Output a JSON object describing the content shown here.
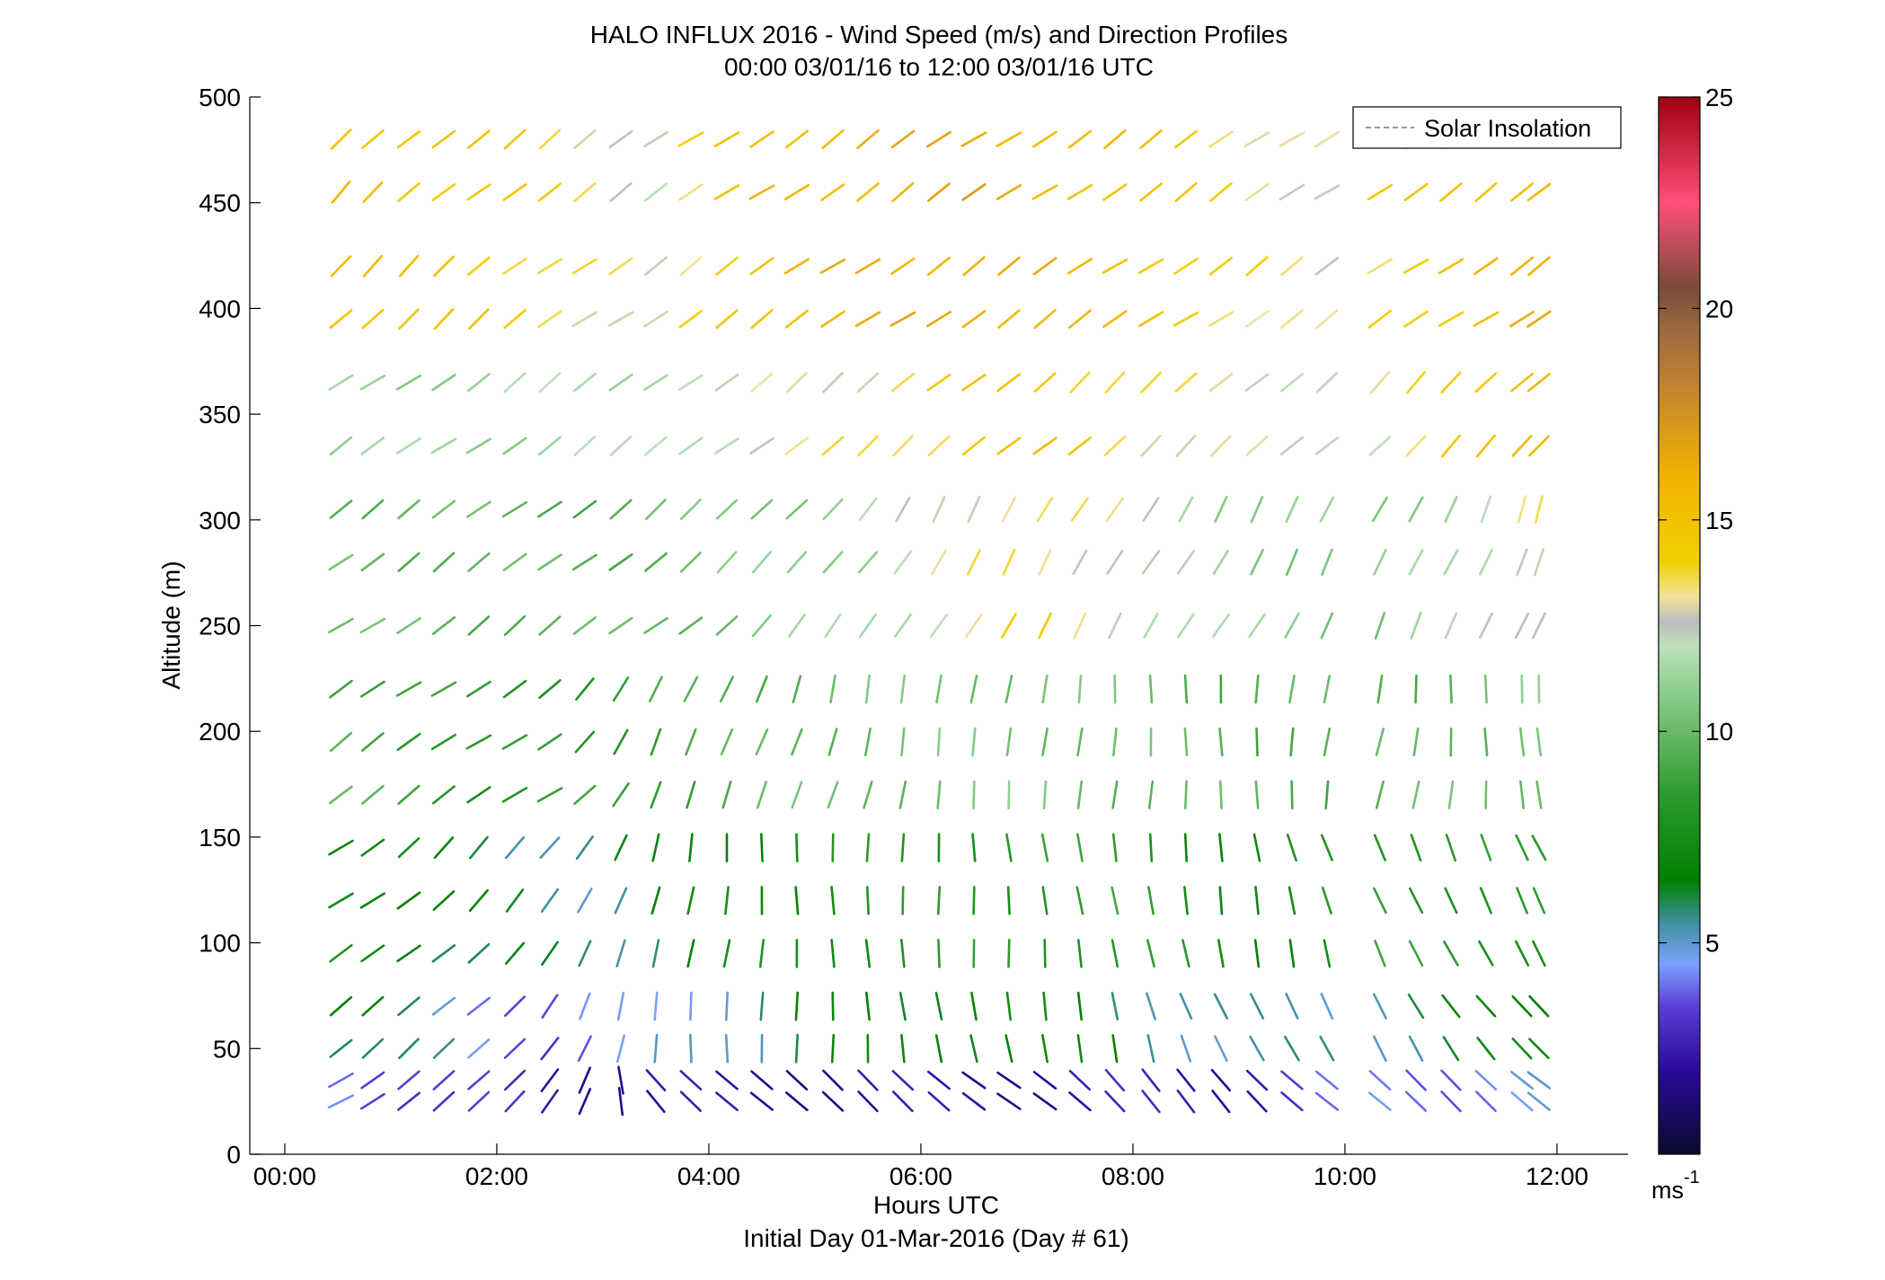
{
  "chart_data": {
    "type": "wind_barb_profile",
    "title": "HALO INFLUX 2016 - Wind Speed (m/s) and Direction Profiles",
    "subtitle": "00:00 03/01/16 to 12:00 03/01/16  UTC",
    "xlabel": "Hours UTC",
    "xlabel2": "Initial Day 01-Mar-2016 (Day # 61)",
    "ylabel": "Altitude (m)",
    "xlim": [
      -0.33,
      12.67
    ],
    "ylim": [
      0,
      500
    ],
    "x_ticks": [
      0,
      2,
      4,
      6,
      8,
      10,
      12
    ],
    "x_tick_labels": [
      "00:00",
      "02:00",
      "04:00",
      "06:00",
      "08:00",
      "10:00",
      "12:00"
    ],
    "y_ticks": [
      0,
      50,
      100,
      150,
      200,
      250,
      300,
      350,
      400,
      450,
      500
    ],
    "y_tick_labels": [
      "0",
      "50",
      "100",
      "150",
      "200",
      "250",
      "300",
      "350",
      "400",
      "450",
      "500"
    ],
    "grid": false,
    "legend": {
      "location": "top-right",
      "entries": [
        {
          "label": "Solar Insolation",
          "color": "#999999",
          "style": "dashed"
        }
      ]
    },
    "colorbar": {
      "range": [
        0,
        25
      ],
      "ticks": [
        5,
        10,
        15,
        20,
        25
      ],
      "tick_labels": [
        "5",
        "10",
        "15",
        "20",
        "25"
      ],
      "unit_label": "ms",
      "unit_exponent": "-1",
      "colormap_stops": [
        {
          "v": 0,
          "color": "#0a0a2e"
        },
        {
          "v": 2,
          "color": "#2a0a9a"
        },
        {
          "v": 3.5,
          "color": "#5a3fd6"
        },
        {
          "v": 4.5,
          "color": "#7aa2ff"
        },
        {
          "v": 5.5,
          "color": "#3e8f9a"
        },
        {
          "v": 6.5,
          "color": "#008000"
        },
        {
          "v": 8.5,
          "color": "#2e9a2e"
        },
        {
          "v": 11,
          "color": "#8fcf8f"
        },
        {
          "v": 12,
          "color": "#bde0bd"
        },
        {
          "v": 12.6,
          "color": "#bdbdbd"
        },
        {
          "v": 13.2,
          "color": "#f2e29a"
        },
        {
          "v": 14,
          "color": "#f2d000"
        },
        {
          "v": 16,
          "color": "#f0b400"
        },
        {
          "v": 18,
          "color": "#c8862e"
        },
        {
          "v": 19.5,
          "color": "#9a6a40"
        },
        {
          "v": 20.5,
          "color": "#7a4a3a"
        },
        {
          "v": 22.5,
          "color": "#ff4f7a"
        },
        {
          "v": 25,
          "color": "#a00010"
        }
      ]
    },
    "times_hours": [
      0.53,
      0.83,
      1.17,
      1.5,
      1.83,
      2.17,
      2.5,
      2.83,
      3.17,
      3.5,
      3.83,
      4.17,
      4.5,
      4.83,
      5.17,
      5.5,
      5.83,
      6.17,
      6.5,
      6.83,
      7.17,
      7.5,
      7.83,
      8.17,
      8.5,
      8.83,
      9.17,
      9.5,
      9.83,
      10.33,
      10.67,
      11.0,
      11.33,
      11.67,
      11.83
    ],
    "altitudes_m": [
      480,
      455,
      420,
      395,
      365,
      335,
      305,
      280,
      250,
      220,
      195,
      170,
      145,
      120,
      95,
      70,
      50,
      35,
      25
    ],
    "data_gap_hours": [
      9.83,
      10.33
    ],
    "profiles": [
      {
        "alt_from": 380,
        "dir_by_time": {
          "0.5": 225,
          "3.0": 235,
          "5.0": 235,
          "8.0": 235,
          "12.0": 235
        },
        "speed_by_time": {
          "0.5": 15.5,
          "2.5": 14,
          "3.5": 12.5,
          "4.5": 15.5,
          "6.5": 16.5,
          "8.5": 14.5,
          "9.8": 12.5,
          "10.3": 14,
          "11.8": 16
        }
      },
      {
        "alt_from": 320,
        "dir_by_time": {
          "0.5": 235,
          "6.0": 230,
          "12.0": 225
        },
        "speed_by_time": {
          "0.5": 11,
          "3.0": 11.5,
          "5.0": 13,
          "7.0": 15,
          "9.0": 12.5,
          "10.3": 12.5,
          "11.8": 16
        }
      },
      {
        "alt_from": 240,
        "dir_by_time": {
          "0.5": 235,
          "4.0": 230,
          "6.0": 210,
          "9.0": 210,
          "10.3": 205,
          "12.0": 200
        },
        "speed_by_time": {
          "0.5": 10,
          "3.0": 9.5,
          "5.5": 11.5,
          "7.0": 14,
          "9.0": 11,
          "10.3": 10.5,
          "11.8": 13
        }
      },
      {
        "alt_from": 160,
        "dir_by_time": {
          "0.5": 235,
          "2.5": 235,
          "3.5": 205,
          "5.0": 195,
          "7.0": 185,
          "9.0": 180,
          "10.3": 190,
          "12.0": 175
        },
        "speed_by_time": {
          "0.5": 9.5,
          "2.0": 8,
          "3.0": 8.5,
          "5.0": 10,
          "7.0": 10.5,
          "9.0": 9.5,
          "10.3": 9.5,
          "11.8": 10.5
        }
      },
      {
        "alt_from": 90,
        "dir_by_time": {
          "0.5": 235,
          "2.5": 220,
          "3.5": 190,
          "5.0": 180,
          "7.0": 175,
          "9.0": 170,
          "10.3": 160,
          "12.0": 150
        },
        "speed_by_time": {
          "0.5": 7.5,
          "2.0": 6,
          "3.0": 5.5,
          "4.0": 7,
          "6.0": 8,
          "8.0": 8.5,
          "9.0": 6.5,
          "10.3": 8.5,
          "11.8": 8
        }
      },
      {
        "alt_from": 45,
        "dir_by_time": {
          "0.5": 235,
          "2.0": 225,
          "3.0": 200,
          "4.0": 180,
          "6.0": 175,
          "8.0": 165,
          "10.0": 150,
          "12.0": 140
        },
        "speed_by_time": {
          "0.5": 6.5,
          "1.5": 5,
          "2.5": 3.5,
          "3.5": 4.5,
          "5.0": 6.5,
          "7.0": 7,
          "9.0": 5,
          "10.3": 5.5,
          "11.8": 7
        }
      },
      {
        "alt_from": 0,
        "dir_by_time": {
          "0.5": 240,
          "2.0": 230,
          "2.8": 200,
          "3.5": 140,
          "5.0": 130,
          "7.0": 130,
          "9.0": 140,
          "10.3": 130,
          "12.0": 130
        },
        "speed_by_time": {
          "0.5": 4.5,
          "1.5": 3,
          "2.5": 2.5,
          "3.5": 2,
          "6.0": 2,
          "9.0": 2.5,
          "10.3": 4,
          "11.8": 4.5
        }
      }
    ]
  }
}
